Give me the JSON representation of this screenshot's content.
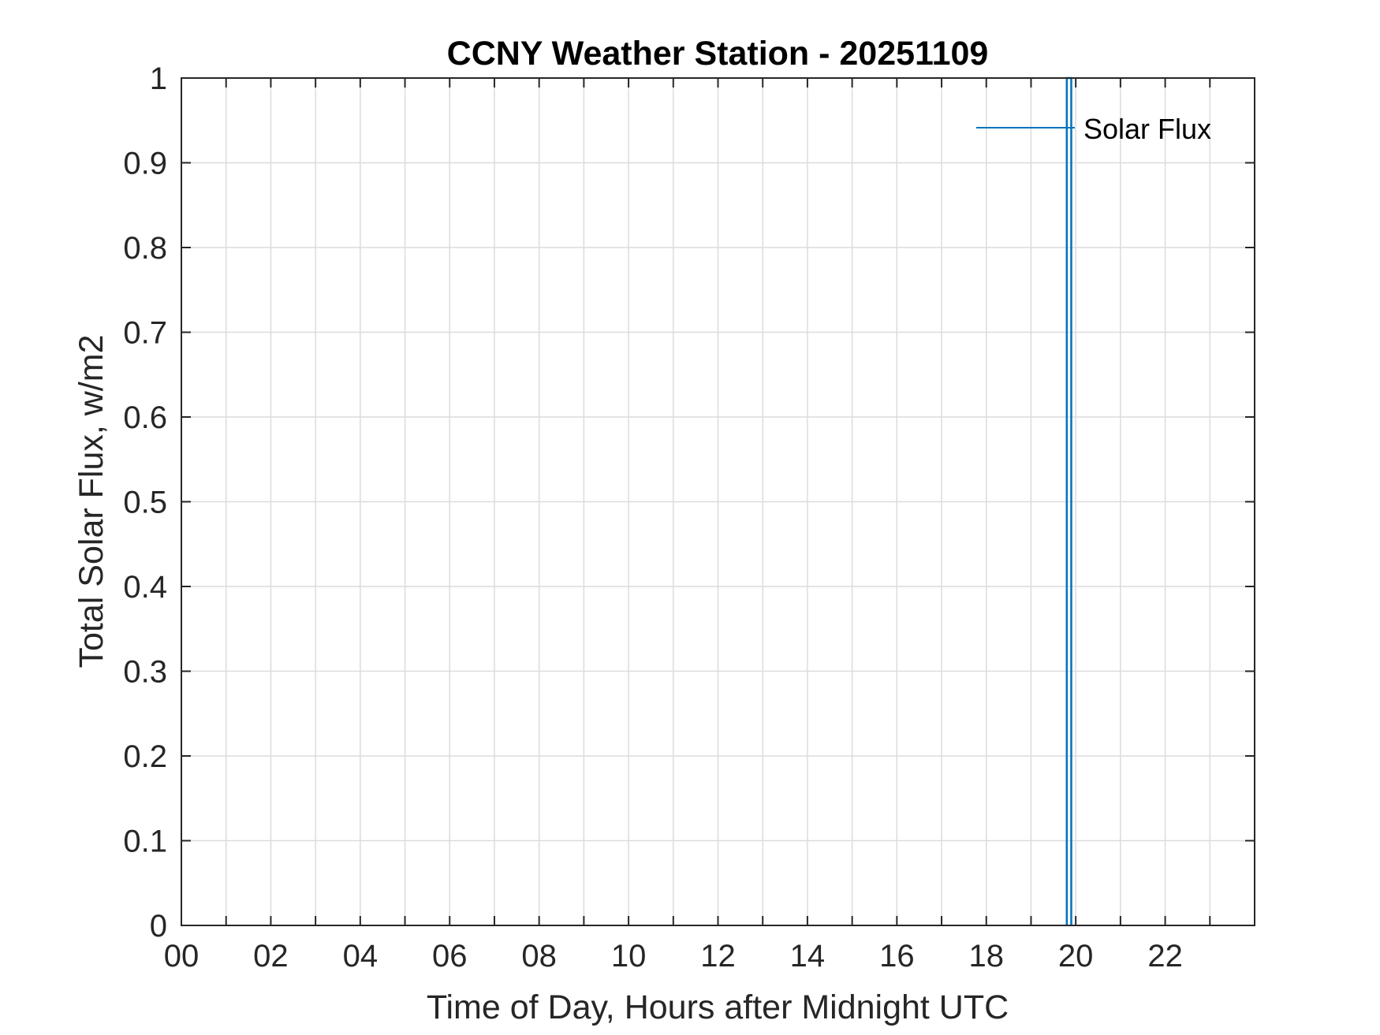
{
  "chart_data": {
    "type": "line",
    "title": "CCNY Weather Station - 20251109",
    "xlabel": "Time of Day, Hours after Midnight UTC",
    "ylabel": "Total Solar Flux, w/m2",
    "xlim": [
      0,
      24
    ],
    "ylim": [
      0,
      1
    ],
    "x_ticks": [
      0,
      2,
      4,
      6,
      8,
      10,
      12,
      14,
      16,
      18,
      20,
      22
    ],
    "x_tick_labels": [
      "00",
      "02",
      "04",
      "06",
      "08",
      "10",
      "12",
      "14",
      "16",
      "18",
      "20",
      "22"
    ],
    "x_minor_ticks": [
      1,
      3,
      5,
      7,
      9,
      11,
      13,
      15,
      17,
      19,
      21,
      23
    ],
    "y_ticks": [
      0,
      0.1,
      0.2,
      0.3,
      0.4,
      0.5,
      0.6,
      0.7,
      0.8,
      0.9,
      1
    ],
    "y_tick_labels": [
      "0",
      "0.1",
      "0.2",
      "0.3",
      "0.4",
      "0.5",
      "0.6",
      "0.7",
      "0.8",
      "0.9",
      "1"
    ],
    "grid": true,
    "legend_position": "top-right",
    "series": [
      {
        "name": "Solar Flux",
        "color": "#0072BD",
        "x": [
          19.8,
          19.8,
          19.9,
          19.9
        ],
        "y": [
          0,
          1,
          1,
          0
        ]
      }
    ]
  }
}
